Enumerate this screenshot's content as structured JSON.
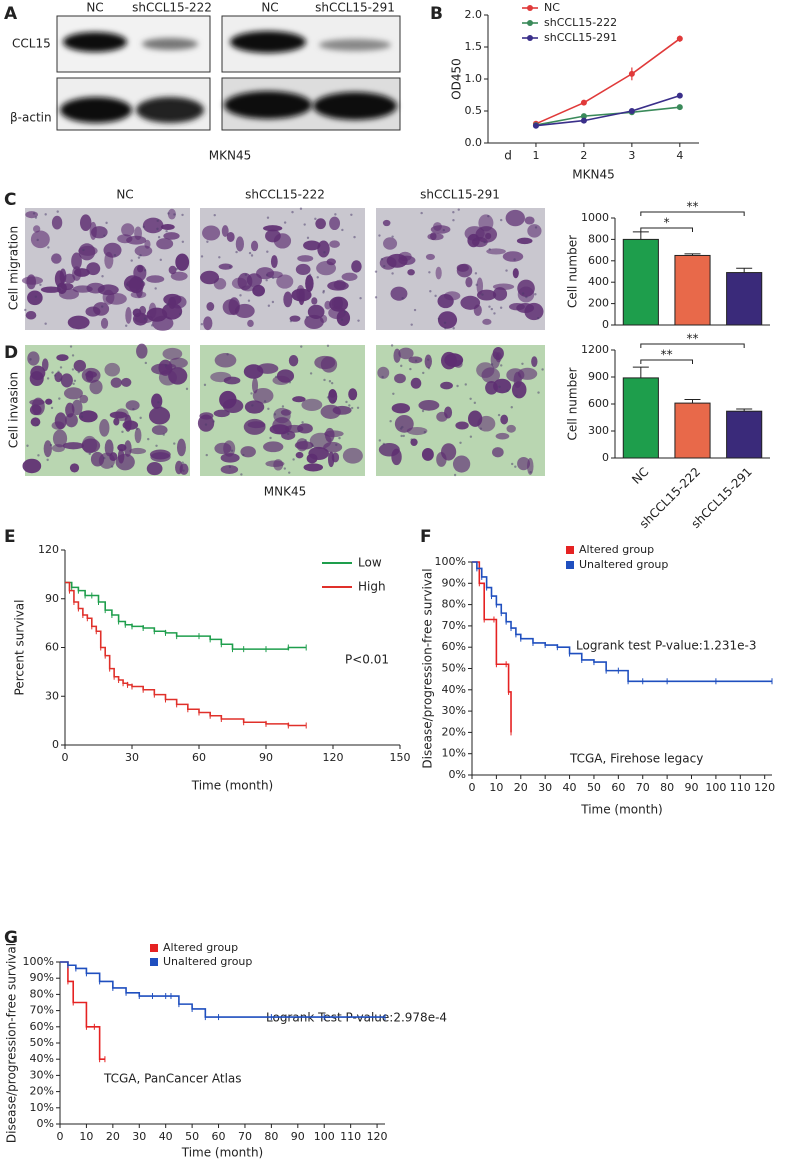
{
  "blot": {
    "panel": "A",
    "lanes": [
      "NC",
      "shCCL15-222",
      "NC",
      "shCCL15-291"
    ],
    "rows": [
      "CCL15",
      "β-actin"
    ],
    "caption": "MKN45"
  },
  "micrographs": {
    "columns": [
      "NC",
      "shCCL15-222",
      "shCCL15-291"
    ],
    "rows": [
      {
        "panel": "C",
        "label": "Cell migration"
      },
      {
        "panel": "D",
        "label": "Cell invasion"
      }
    ],
    "caption": "MNK45"
  },
  "chart_data": [
    {
      "type": "line",
      "panel": "B",
      "xlabel": "MKN45",
      "xunit": "d",
      "ylabel": "OD450",
      "x": [
        1,
        2,
        3,
        4
      ],
      "xlim": [
        0,
        4.4
      ],
      "xticks": [
        1,
        2,
        3,
        4
      ],
      "ylim": [
        0,
        2
      ],
      "yticks": [
        {
          "value": 0,
          "label": "0.0"
        },
        0.5,
        {
          "value": 1,
          "label": "1.0"
        },
        1.5,
        {
          "value": 2,
          "label": "2.0"
        }
      ],
      "series": [
        {
          "name": "NC",
          "color": "#e03a3a",
          "values": [
            0.3,
            0.63,
            1.08,
            1.63
          ],
          "errors": [
            0.03,
            0.04,
            0.1,
            0.05
          ]
        },
        {
          "name": "shCCL15-222",
          "color": "#3a8a5a",
          "values": [
            0.28,
            0.42,
            0.48,
            0.56
          ],
          "errors": [
            0.02,
            0.03,
            0.02,
            0.03
          ]
        },
        {
          "name": "shCCL15-291",
          "color": "#3a2f8a",
          "values": [
            0.27,
            0.35,
            0.5,
            0.74
          ],
          "errors": [
            0.02,
            0.03,
            0.02,
            0.03
          ]
        }
      ]
    },
    {
      "type": "bar",
      "ylabel": "Cell number",
      "categories": [
        null,
        null,
        null
      ],
      "values": [
        800,
        650,
        490
      ],
      "errors": [
        70,
        15,
        40
      ],
      "colors": [
        "#1e9e4c",
        "#e8694a",
        "#3a2a7a"
      ],
      "ylim": [
        0,
        1000
      ],
      "yticks": [
        0,
        200,
        400,
        600,
        800,
        1000
      ],
      "significance": [
        "*",
        "**"
      ]
    },
    {
      "type": "bar",
      "ylabel": "Cell number",
      "categories": [
        "NC",
        "shCCL15-222",
        "shCCL15-291"
      ],
      "values": [
        890,
        610,
        520
      ],
      "errors": [
        120,
        40,
        25
      ],
      "colors": [
        "#1e9e4c",
        "#e8694a",
        "#3a2a7a"
      ],
      "ylim": [
        0,
        1200
      ],
      "yticks": [
        0,
        300,
        600,
        900,
        1200
      ],
      "significance": [
        "**",
        "**"
      ]
    },
    {
      "type": "step",
      "panel": "E",
      "xlabel": "Time (month)",
      "ylabel": "Percent survival",
      "xlim": [
        0,
        150
      ],
      "xticks": [
        0,
        30,
        60,
        90,
        120,
        150
      ],
      "ylim": [
        0,
        120
      ],
      "yticks": [
        0,
        30,
        60,
        90,
        120
      ],
      "annotations": [
        "P<0.01"
      ],
      "series": [
        {
          "name": "Low",
          "color": "#1e9e4c",
          "x": [
            0,
            3,
            6,
            9,
            12,
            15,
            18,
            21,
            24,
            27,
            30,
            35,
            40,
            45,
            50,
            60,
            65,
            70,
            75,
            80,
            90,
            100,
            108
          ],
          "values": [
            100,
            97,
            95,
            92,
            92,
            88,
            83,
            80,
            76,
            74,
            73,
            72,
            70,
            69,
            67,
            67,
            65,
            62,
            59,
            59,
            59,
            60,
            60
          ]
        },
        {
          "name": "High",
          "color": "#e0302a",
          "x": [
            0,
            2,
            4,
            6,
            8,
            10,
            12,
            14,
            16,
            18,
            20,
            22,
            24,
            26,
            28,
            30,
            35,
            40,
            45,
            50,
            55,
            60,
            65,
            70,
            80,
            90,
            100,
            108
          ],
          "values": [
            100,
            95,
            88,
            84,
            80,
            78,
            73,
            70,
            60,
            55,
            47,
            42,
            40,
            38,
            37,
            36,
            34,
            31,
            28,
            25,
            22,
            20,
            18,
            16,
            14,
            13,
            12,
            12
          ]
        }
      ]
    },
    {
      "type": "step",
      "panel": "F",
      "xlabel": "Time (month)",
      "ylabel": "Disease/progression-free survival",
      "xlim": [
        0,
        123
      ],
      "xticks": [
        0,
        10,
        20,
        30,
        40,
        50,
        60,
        70,
        80,
        90,
        100,
        110,
        120
      ],
      "ylim": [
        0,
        100
      ],
      "yticks": [
        {
          "value": 0,
          "label": "0%"
        },
        {
          "value": 10,
          "label": "10%"
        },
        {
          "value": 20,
          "label": "20%"
        },
        {
          "value": 30,
          "label": "30%"
        },
        {
          "value": 40,
          "label": "40%"
        },
        {
          "value": 50,
          "label": "50%"
        },
        {
          "value": 60,
          "label": "60%"
        },
        {
          "value": 70,
          "label": "70%"
        },
        {
          "value": 80,
          "label": "80%"
        },
        {
          "value": 90,
          "label": "90%"
        },
        {
          "value": 100,
          "label": "100%"
        }
      ],
      "annotations": [
        "Logrank test P-value:1.231e-3",
        "TCGA, Firehose legacy"
      ],
      "series": [
        {
          "name": "Altered group",
          "color": "#e52222",
          "x": [
            0,
            3,
            5,
            9,
            10,
            14,
            15,
            16
          ],
          "values": [
            100,
            90,
            73,
            73,
            52,
            52,
            39,
            20
          ]
        },
        {
          "name": "Unaltered group",
          "color": "#1f4fbf",
          "x": [
            0,
            2,
            4,
            6,
            8,
            10,
            12,
            14,
            16,
            18,
            20,
            25,
            30,
            35,
            40,
            45,
            50,
            55,
            60,
            64,
            70,
            80,
            100,
            123
          ],
          "values": [
            100,
            97,
            93,
            88,
            84,
            80,
            76,
            72,
            69,
            66,
            64,
            62,
            61,
            60,
            57,
            54,
            53,
            49,
            49,
            44,
            44,
            44,
            44,
            44
          ]
        }
      ]
    },
    {
      "type": "step",
      "panel": "G",
      "xlabel": "Time (month)",
      "ylabel": "Disease/progression-free survival",
      "xlim": [
        0,
        123
      ],
      "xticks": [
        0,
        10,
        20,
        30,
        40,
        50,
        60,
        70,
        80,
        90,
        100,
        110,
        120
      ],
      "ylim": [
        0,
        100
      ],
      "yticks": [
        {
          "value": 0,
          "label": "0%"
        },
        {
          "value": 10,
          "label": "10%"
        },
        {
          "value": 20,
          "label": "20%"
        },
        {
          "value": 30,
          "label": "30%"
        },
        {
          "value": 40,
          "label": "40%"
        },
        {
          "value": 50,
          "label": "50%"
        },
        {
          "value": 60,
          "label": "60%"
        },
        {
          "value": 70,
          "label": "70%"
        },
        {
          "value": 80,
          "label": "80%"
        },
        {
          "value": 90,
          "label": "90%"
        },
        {
          "value": 100,
          "label": "100%"
        }
      ],
      "annotations": [
        "Logrank Test P-value:2.978e-4",
        "TCGA, PanCancer Atlas"
      ],
      "series": [
        {
          "name": "Altered group",
          "color": "#e52222",
          "x": [
            0,
            3,
            5,
            10,
            13,
            15,
            17
          ],
          "values": [
            100,
            88,
            75,
            60,
            60,
            40,
            40
          ]
        },
        {
          "name": "Unaltered group",
          "color": "#1f4fbf",
          "x": [
            0,
            3,
            6,
            10,
            15,
            20,
            25,
            30,
            35,
            40,
            42,
            45,
            50,
            55,
            60,
            80,
            100,
            123
          ],
          "values": [
            100,
            98,
            96,
            93,
            88,
            84,
            81,
            79,
            79,
            79,
            79,
            74,
            71,
            66,
            66,
            66,
            66,
            66
          ]
        }
      ]
    }
  ]
}
